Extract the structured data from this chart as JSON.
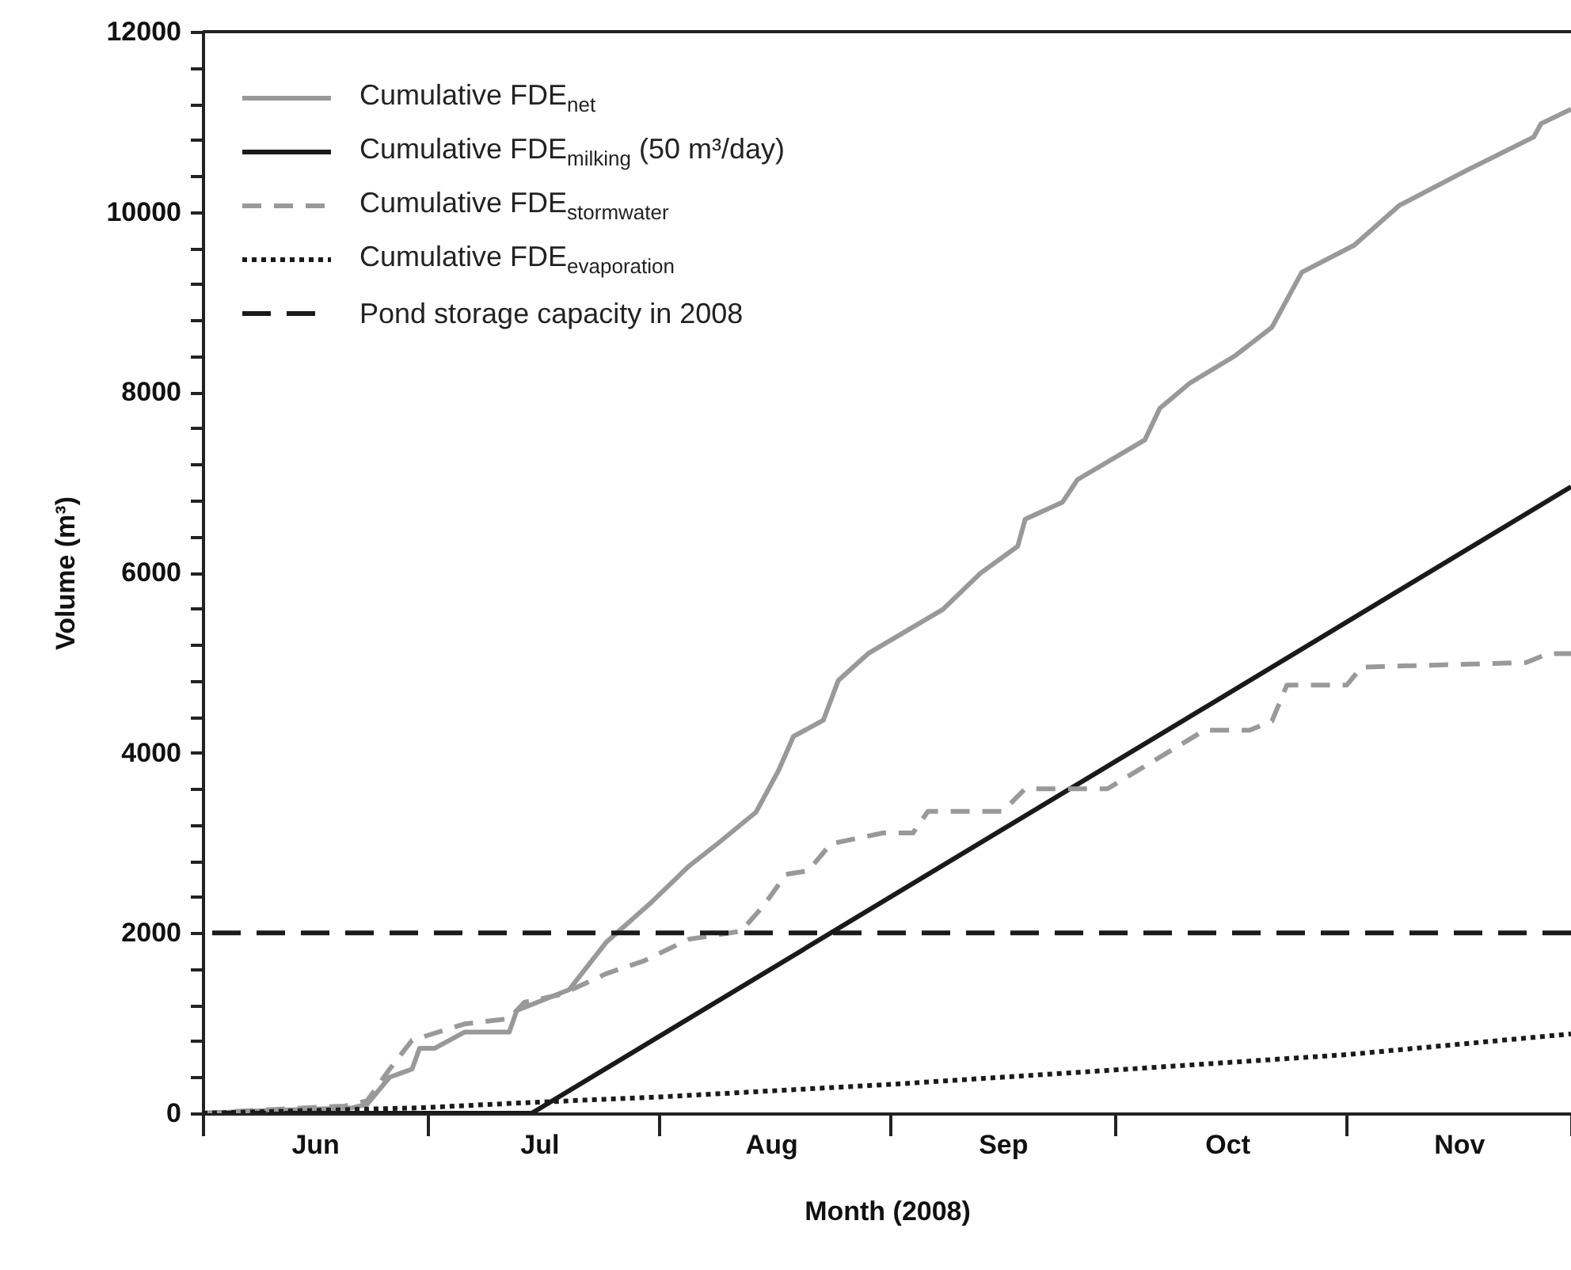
{
  "chart_data": {
    "type": "line",
    "xlabel": "Month (2008)",
    "ylabel": "Volume (m³)",
    "xlim": [
      "2008-06-01",
      "2008-12-01"
    ],
    "xticks": [
      {
        "value": "2008-06-01",
        "label": null
      },
      {
        "value": "2008-06-16",
        "label": "Jun"
      },
      {
        "value": "2008-07-01",
        "label": null
      },
      {
        "value": "2008-07-16",
        "label": "Jul"
      },
      {
        "value": "2008-08-01",
        "label": null
      },
      {
        "value": "2008-08-16",
        "label": "Aug"
      },
      {
        "value": "2008-09-01",
        "label": null
      },
      {
        "value": "2008-09-16",
        "label": "Sep"
      },
      {
        "value": "2008-10-01",
        "label": null
      },
      {
        "value": "2008-10-16",
        "label": "Oct"
      },
      {
        "value": "2008-11-01",
        "label": null
      },
      {
        "value": "2008-11-16",
        "label": "Nov"
      },
      {
        "value": "2008-12-01",
        "label": null
      }
    ],
    "ylim": [
      0,
      12000
    ],
    "yticks": [
      0,
      {
        "value": 400,
        "label": null
      },
      {
        "value": 800,
        "label": null
      },
      {
        "value": 1200,
        "label": null
      },
      {
        "value": 1600,
        "label": null
      },
      2000,
      {
        "value": 2400,
        "label": null
      },
      {
        "value": 2800,
        "label": null
      },
      {
        "value": 3200,
        "label": null
      },
      {
        "value": 3600,
        "label": null
      },
      4000,
      {
        "value": 4400,
        "label": null
      },
      {
        "value": 4800,
        "label": null
      },
      {
        "value": 5200,
        "label": null
      },
      {
        "value": 5600,
        "label": null
      },
      6000,
      {
        "value": 6400,
        "label": null
      },
      {
        "value": 6800,
        "label": null
      },
      {
        "value": 7200,
        "label": null
      },
      {
        "value": 7600,
        "label": null
      },
      8000,
      {
        "value": 8400,
        "label": null
      },
      {
        "value": 8800,
        "label": null
      },
      {
        "value": 9200,
        "label": null
      },
      {
        "value": 9600,
        "label": null
      },
      10000,
      {
        "value": 10400,
        "label": null
      },
      {
        "value": 10800,
        "label": null
      },
      {
        "value": 11200,
        "label": null
      },
      {
        "value": 11600,
        "label": null
      },
      12000
    ],
    "grid": false,
    "legend": "top left",
    "series": [
      {
        "name": "Cumulative FDE$_{net}$",
        "color": "#999999",
        "line_style": "solid",
        "x": [
          "2008-06-01",
          "2008-06-10",
          "2008-06-21",
          "2008-06-23",
          "2008-06-26",
          "2008-06-29",
          "2008-06-30",
          "2008-07-02",
          "2008-07-06",
          "2008-07-12",
          "2008-07-13",
          "2008-07-20",
          "2008-07-25",
          "2008-07-31",
          "2008-08-05",
          "2008-08-09",
          "2008-08-14",
          "2008-08-17",
          "2008-08-19",
          "2008-08-23",
          "2008-08-25",
          "2008-08-29",
          "2008-09-08",
          "2008-09-13",
          "2008-09-18",
          "2008-09-19",
          "2008-09-24",
          "2008-09-26",
          "2008-10-05",
          "2008-10-07",
          "2008-10-11",
          "2008-10-17",
          "2008-10-22",
          "2008-10-26",
          "2008-11-02",
          "2008-11-08",
          "2008-11-17",
          "2008-11-26",
          "2008-11-27",
          "2008-12-01"
        ],
        "values": [
          0,
          30,
          60,
          100,
          400,
          490,
          720,
          720,
          900,
          900,
          1140,
          1370,
          1900,
          2340,
          2740,
          3000,
          3340,
          3800,
          4180,
          4360,
          4800,
          5100,
          5590,
          5990,
          6290,
          6590,
          6780,
          7030,
          7470,
          7820,
          8100,
          8400,
          8720,
          9330,
          9630,
          10070,
          10460,
          10830,
          10980,
          11140
        ]
      },
      {
        "name": "Cumulative FDE$_{milking}$ (50 m³/day)",
        "color": "#1a1a1a",
        "line_style": "solid",
        "x": [
          "2008-06-01",
          "2008-07-15",
          "2008-12-01"
        ],
        "values": [
          0,
          0,
          6950
        ]
      },
      {
        "name": "Cumulative FDE$_{stormwater}$",
        "color": "#999999",
        "line_style": "dashed",
        "x": [
          "2008-06-01",
          "2008-06-10",
          "2008-06-20",
          "2008-06-23",
          "2008-06-26",
          "2008-06-29",
          "2008-07-06",
          "2008-07-12",
          "2008-07-14",
          "2008-07-19",
          "2008-07-25",
          "2008-07-30",
          "2008-08-05",
          "2008-08-12",
          "2008-08-15",
          "2008-08-18",
          "2008-08-21",
          "2008-08-24",
          "2008-08-31",
          "2008-09-04",
          "2008-09-06",
          "2008-09-16",
          "2008-09-19",
          "2008-09-30",
          "2008-10-04",
          "2008-10-08",
          "2008-10-13",
          "2008-10-19",
          "2008-10-22",
          "2008-10-24",
          "2008-11-01",
          "2008-11-03",
          "2008-11-25",
          "2008-11-28",
          "2008-12-01"
        ],
        "values": [
          0,
          40,
          80,
          140,
          490,
          810,
          990,
          1050,
          1230,
          1320,
          1550,
          1690,
          1930,
          2020,
          2300,
          2650,
          2690,
          2990,
          3110,
          3110,
          3350,
          3350,
          3600,
          3600,
          3800,
          4000,
          4250,
          4250,
          4350,
          4750,
          4750,
          4950,
          5000,
          5100,
          5100
        ]
      },
      {
        "name": "Cumulative FDE$_{evaporation}$",
        "color": "#1a1a1a",
        "line_style": "dotted",
        "x": [
          "2008-06-01",
          "2008-06-30",
          "2008-07-15",
          "2008-08-01",
          "2008-09-01",
          "2008-10-01",
          "2008-11-01",
          "2008-12-01"
        ],
        "values": [
          0,
          60,
          120,
          180,
          320,
          480,
          650,
          880
        ]
      }
    ],
    "ref_lines": [
      {
        "axis": "y",
        "value": 2000,
        "label": "Pond storage capacity in 2008",
        "color": "#1a1a1a",
        "line_style": "dashed"
      }
    ]
  }
}
